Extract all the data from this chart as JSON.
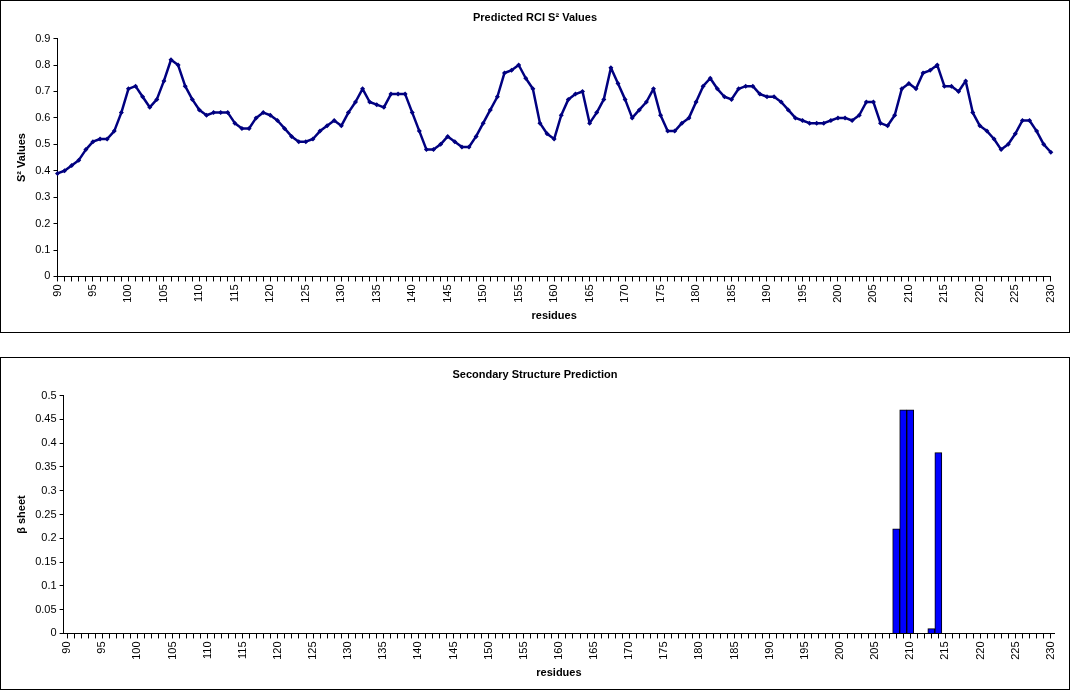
{
  "chart_data": [
    {
      "type": "line",
      "title": "Predicted RCI S² Values",
      "xlabel": "residues",
      "ylabel": "S² Values",
      "categories": [
        "90",
        null,
        null,
        null,
        null,
        "95",
        null,
        null,
        null,
        null,
        "100",
        null,
        null,
        null,
        null,
        "105",
        null,
        null,
        null,
        null,
        "110",
        null,
        null,
        null,
        null,
        "115",
        null,
        null,
        null,
        null,
        "120",
        null,
        null,
        null,
        null,
        "125",
        null,
        null,
        null,
        null,
        "130",
        null,
        null,
        null,
        null,
        "135",
        null,
        null,
        null,
        null,
        "140",
        null,
        null,
        null,
        null,
        "145",
        null,
        null,
        null,
        null,
        "150",
        null,
        null,
        null,
        null,
        "155",
        null,
        null,
        null,
        null,
        "160",
        null,
        null,
        null,
        null,
        "165",
        null,
        null,
        null,
        null,
        "170",
        null,
        null,
        null,
        null,
        "175",
        null,
        null,
        null,
        null,
        "180",
        null,
        null,
        null,
        null,
        "185",
        null,
        null,
        null,
        null,
        "190",
        null,
        null,
        null,
        null,
        "195",
        null,
        null,
        null,
        null,
        "200",
        null,
        null,
        null,
        null,
        "205",
        null,
        null,
        null,
        null,
        "210",
        null,
        null,
        null,
        null,
        "215",
        null,
        null,
        null,
        null,
        "220",
        null,
        null,
        null,
        null,
        "225",
        null,
        null,
        null,
        null,
        "230"
      ],
      "series": [
        {
          "color": "#000080",
          "values": [
            0.39,
            0.4,
            0.42,
            0.44,
            0.48,
            0.51,
            0.52,
            0.52,
            0.55,
            0.62,
            0.71,
            0.72,
            0.68,
            0.64,
            0.67,
            0.74,
            0.82,
            0.8,
            0.72,
            0.67,
            0.63,
            0.61,
            0.62,
            0.62,
            0.62,
            0.58,
            0.56,
            0.56,
            0.6,
            0.62,
            0.61,
            0.59,
            0.56,
            0.53,
            0.51,
            0.51,
            0.52,
            0.55,
            0.57,
            0.59,
            0.57,
            0.62,
            0.66,
            0.71,
            0.66,
            0.65,
            0.64,
            0.69,
            0.69,
            0.69,
            0.62,
            0.55,
            0.48,
            0.48,
            0.5,
            0.53,
            0.51,
            0.49,
            0.49,
            0.53,
            0.58,
            0.63,
            0.68,
            0.77,
            0.78,
            0.8,
            0.75,
            0.71,
            0.58,
            0.54,
            0.52,
            0.61,
            0.67,
            0.69,
            0.7,
            0.58,
            0.62,
            0.67,
            0.79,
            0.73,
            0.67,
            0.6,
            0.63,
            0.66,
            0.71,
            0.61,
            0.55,
            0.55,
            0.58,
            0.6,
            0.66,
            0.72,
            0.75,
            0.71,
            0.68,
            0.67,
            0.71,
            0.72,
            0.72,
            0.69,
            0.68,
            0.68,
            0.66,
            0.63,
            0.6,
            0.59,
            0.58,
            0.58,
            0.58,
            0.59,
            0.6,
            0.6,
            0.59,
            0.61,
            0.66,
            0.66,
            0.58,
            0.57,
            0.61,
            0.71,
            0.73,
            0.71,
            0.77,
            0.78,
            0.8,
            0.72,
            0.72,
            0.7,
            0.74,
            0.62,
            0.57,
            0.55,
            0.52,
            0.48,
            0.5,
            0.54,
            0.59,
            0.59,
            0.55,
            0.5,
            0.47
          ]
        }
      ],
      "ylim": [
        0,
        0.9
      ],
      "yticks": [
        0,
        0.1,
        0.2,
        0.3,
        0.4,
        0.5,
        0.6,
        0.7,
        0.8,
        0.9
      ],
      "grid": false,
      "legend": false,
      "marker": "diamond",
      "line_style": "solid"
    },
    {
      "type": "bar",
      "title": "Secondary Structure Prediction",
      "xlabel": "residues",
      "ylabel": "β sheet",
      "categories": [
        "90",
        null,
        null,
        null,
        null,
        "95",
        null,
        null,
        null,
        null,
        "100",
        null,
        null,
        null,
        null,
        "105",
        null,
        null,
        null,
        null,
        "110",
        null,
        null,
        null,
        null,
        "115",
        null,
        null,
        null,
        null,
        "120",
        null,
        null,
        null,
        null,
        "125",
        null,
        null,
        null,
        null,
        "130",
        null,
        null,
        null,
        null,
        "135",
        null,
        null,
        null,
        null,
        "140",
        null,
        null,
        null,
        null,
        "145",
        null,
        null,
        null,
        null,
        "150",
        null,
        null,
        null,
        null,
        "155",
        null,
        null,
        null,
        null,
        "160",
        null,
        null,
        null,
        null,
        "165",
        null,
        null,
        null,
        null,
        "170",
        null,
        null,
        null,
        null,
        "175",
        null,
        null,
        null,
        null,
        "180",
        null,
        null,
        null,
        null,
        "185",
        null,
        null,
        null,
        null,
        "190",
        null,
        null,
        null,
        null,
        "195",
        null,
        null,
        null,
        null,
        "200",
        null,
        null,
        null,
        null,
        "205",
        null,
        null,
        null,
        null,
        "210",
        null,
        null,
        null,
        null,
        "215",
        null,
        null,
        null,
        null,
        "220",
        null,
        null,
        null,
        null,
        "225",
        null,
        null,
        null,
        null,
        "230"
      ],
      "series": [
        {
          "color": "#0000ff",
          "values": [
            0,
            0,
            0,
            0,
            0,
            0,
            0,
            0,
            0,
            0,
            0,
            0,
            0,
            0,
            0,
            0,
            0,
            0,
            0,
            0,
            0,
            0,
            0,
            0,
            0,
            0,
            0,
            0,
            0,
            0,
            0,
            0,
            0,
            0,
            0,
            0,
            0,
            0,
            0,
            0,
            0,
            0,
            0,
            0,
            0,
            0,
            0,
            0,
            0,
            0,
            0,
            0,
            0,
            0,
            0,
            0,
            0,
            0,
            0,
            0,
            0,
            0,
            0,
            0,
            0,
            0,
            0,
            0,
            0,
            0,
            0,
            0,
            0,
            0,
            0,
            0,
            0,
            0,
            0,
            0,
            0,
            0,
            0,
            0,
            0,
            0,
            0,
            0,
            0,
            0,
            0,
            0,
            0,
            0,
            0,
            0,
            0,
            0,
            0,
            0,
            0,
            0,
            0,
            0,
            0,
            0,
            0,
            0,
            0,
            0,
            0,
            0,
            0,
            0,
            0,
            0,
            0,
            0,
            0.22,
            0.47,
            0.47,
            0,
            0,
            0.01,
            0.38,
            0,
            0,
            0,
            0,
            0,
            0,
            0,
            0,
            0,
            0,
            0,
            0,
            0,
            0,
            0,
            0
          ]
        }
      ],
      "ylim": [
        0,
        0.5
      ],
      "yticks": [
        0,
        0.05,
        0.1,
        0.15,
        0.2,
        0.25,
        0.3,
        0.35,
        0.4,
        0.45,
        0.5
      ],
      "grid": false,
      "legend": false
    }
  ]
}
